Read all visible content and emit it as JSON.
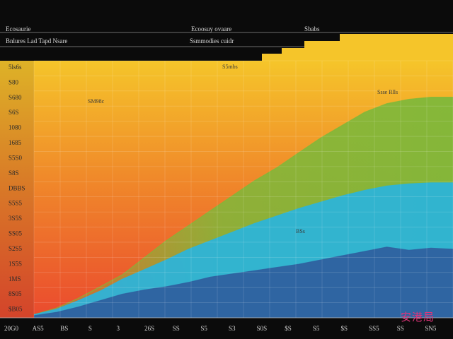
{
  "header": {
    "top_left": "Ecosaurie",
    "top_center": "Ecoosuy ovaare",
    "top_right": "Sbabs",
    "sub_left": "Bnlures Lad Tapd Nsare",
    "sub_center": "Ssmmodies cuidr"
  },
  "watermark": "安港局",
  "chart_data": {
    "type": "area",
    "title": "",
    "xlabel": "",
    "ylabel": "",
    "colors": {
      "yellow": "#f5c52a",
      "orange": "#f08a2a",
      "red": "#ea4a2e",
      "green": "#7fb83a",
      "cyan": "#2ab4dc",
      "blue": "#2f5e9e",
      "background": "#0b0b0b"
    },
    "grid": true,
    "x": [
      0,
      1,
      2,
      3,
      4,
      5,
      6,
      7,
      8,
      9,
      10,
      11,
      12,
      13,
      14,
      15,
      16,
      17,
      18,
      19
    ],
    "series": [
      {
        "name": "",
        "color": "#2f5e9e",
        "values": [
          0.2,
          0.5,
          1.0,
          1.6,
          2.2,
          2.6,
          2.9,
          3.3,
          3.8,
          4.1,
          4.4,
          4.7,
          5.0,
          5.4,
          5.8,
          6.2,
          6.6,
          6.3,
          6.5,
          6.4
        ]
      },
      {
        "name": "",
        "color": "#2ab4dc",
        "values": [
          0.3,
          0.8,
          1.6,
          2.5,
          3.6,
          4.5,
          5.4,
          6.4,
          7.2,
          8.0,
          8.8,
          9.5,
          10.2,
          10.8,
          11.4,
          11.9,
          12.3,
          12.5,
          12.6,
          12.6
        ]
      },
      {
        "name": "",
        "color": "#7fb83a",
        "values": [
          0.3,
          0.9,
          1.8,
          2.9,
          4.0,
          5.6,
          7.2,
          8.6,
          10.0,
          11.4,
          12.8,
          14.0,
          15.4,
          16.8,
          18.0,
          19.2,
          20.0,
          20.4,
          20.6,
          20.6
        ]
      },
      {
        "name": "",
        "color": "#f5c52a",
        "values": [
          22,
          22,
          22,
          22,
          22,
          22,
          22,
          22,
          22,
          22,
          22,
          22,
          22,
          22,
          22,
          22,
          22,
          22,
          22,
          22
        ]
      }
    ],
    "ylim": [
      0,
      24
    ],
    "y_tick_labels": [
      "5ls6s",
      "S80",
      "S680",
      "S6S",
      "1080",
      "1685",
      "S5S0",
      "S8S",
      "DBBS",
      "S5S5",
      "3S5S",
      "SS05",
      "S2S5",
      "1S5S",
      "1MS",
      "8S05",
      "$B05"
    ],
    "x_tick_labels": [
      "20G0",
      "AS5",
      "BS",
      "S",
      "3",
      "26S",
      "SS",
      "S5",
      "S3",
      "S0S",
      "$S",
      "S5",
      "$S",
      "SS5",
      "SS",
      "SN5"
    ],
    "annotations": [
      "SM98c",
      "S5mbs",
      "Ssse Rlls",
      "BSs"
    ]
  }
}
